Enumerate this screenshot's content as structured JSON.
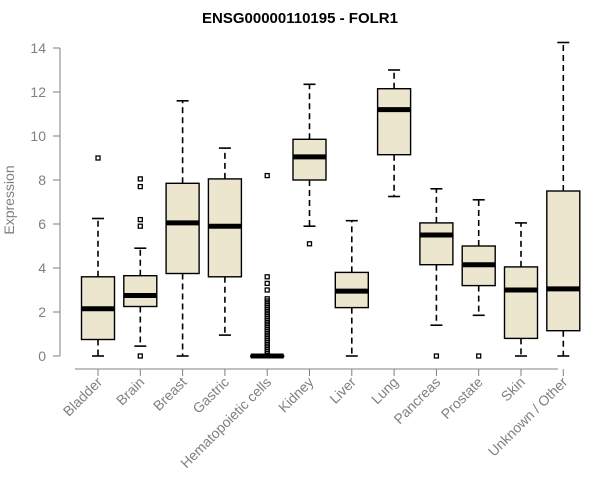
{
  "chart_data": {
    "type": "boxplot",
    "title": "ENSG00000110195 - FOLR1",
    "xlabel": "",
    "ylabel": "Expression",
    "ylim": [
      0,
      14
    ],
    "yticks": [
      0,
      2,
      4,
      6,
      8,
      10,
      12,
      14
    ],
    "categories": [
      "Bladder",
      "Brain",
      "Breast",
      "Gastric",
      "Hematopoietic cells",
      "Kidney",
      "Liver",
      "Lung",
      "Pancreas",
      "Prostate",
      "Skin",
      "Unknown / Other"
    ],
    "boxes": [
      {
        "name": "Bladder",
        "min": 0.0,
        "q1": 0.75,
        "median": 2.15,
        "q3": 3.6,
        "max": 6.25,
        "outliers": [
          9.0
        ]
      },
      {
        "name": "Brain",
        "min": 0.45,
        "q1": 2.25,
        "median": 2.75,
        "q3": 3.65,
        "max": 4.9,
        "outliers": [
          0.0,
          5.9,
          6.2,
          7.7,
          8.05
        ]
      },
      {
        "name": "Breast",
        "min": 0.0,
        "q1": 3.75,
        "median": 6.05,
        "q3": 7.85,
        "max": 11.6,
        "outliers": []
      },
      {
        "name": "Gastric",
        "min": 0.95,
        "q1": 3.6,
        "median": 5.9,
        "q3": 8.05,
        "max": 9.45,
        "outliers": []
      },
      {
        "name": "Hematopoietic cells",
        "min": 0.0,
        "q1": 0.0,
        "median": 0.0,
        "q3": 0.0,
        "max": 0.0,
        "outliers": [
          0.1,
          0.2,
          0.3,
          0.4,
          0.5,
          0.6,
          0.7,
          0.8,
          0.9,
          1.0,
          1.1,
          1.2,
          1.3,
          1.4,
          1.5,
          1.6,
          1.7,
          1.8,
          1.9,
          2.0,
          2.1,
          2.2,
          2.3,
          2.4,
          2.5,
          2.6,
          3.0,
          3.3,
          3.6,
          8.2
        ]
      },
      {
        "name": "Kidney",
        "min": 5.9,
        "q1": 8.0,
        "median": 9.05,
        "q3": 9.85,
        "max": 12.35,
        "outliers": [
          5.1
        ]
      },
      {
        "name": "Liver",
        "min": 0.0,
        "q1": 2.2,
        "median": 2.95,
        "q3": 3.8,
        "max": 6.15,
        "outliers": []
      },
      {
        "name": "Lung",
        "min": 7.25,
        "q1": 9.15,
        "median": 11.2,
        "q3": 12.15,
        "max": 13.0,
        "outliers": []
      },
      {
        "name": "Pancreas",
        "min": 1.4,
        "q1": 4.15,
        "median": 5.5,
        "q3": 6.05,
        "max": 7.6,
        "outliers": [
          0.0
        ]
      },
      {
        "name": "Prostate",
        "min": 1.85,
        "q1": 3.2,
        "median": 4.15,
        "q3": 5.0,
        "max": 7.1,
        "outliers": [
          0.0
        ]
      },
      {
        "name": "Skin",
        "min": 0.0,
        "q1": 0.8,
        "median": 3.0,
        "q3": 4.05,
        "max": 6.05,
        "outliers": []
      },
      {
        "name": "Unknown / Other",
        "min": 0.0,
        "q1": 1.15,
        "median": 3.05,
        "q3": 7.5,
        "max": 14.25,
        "outliers": []
      }
    ],
    "grid": false,
    "legend": "none",
    "colors": {
      "box_fill": "#ede6cf",
      "line": "#000000",
      "axis": "#808080"
    }
  }
}
